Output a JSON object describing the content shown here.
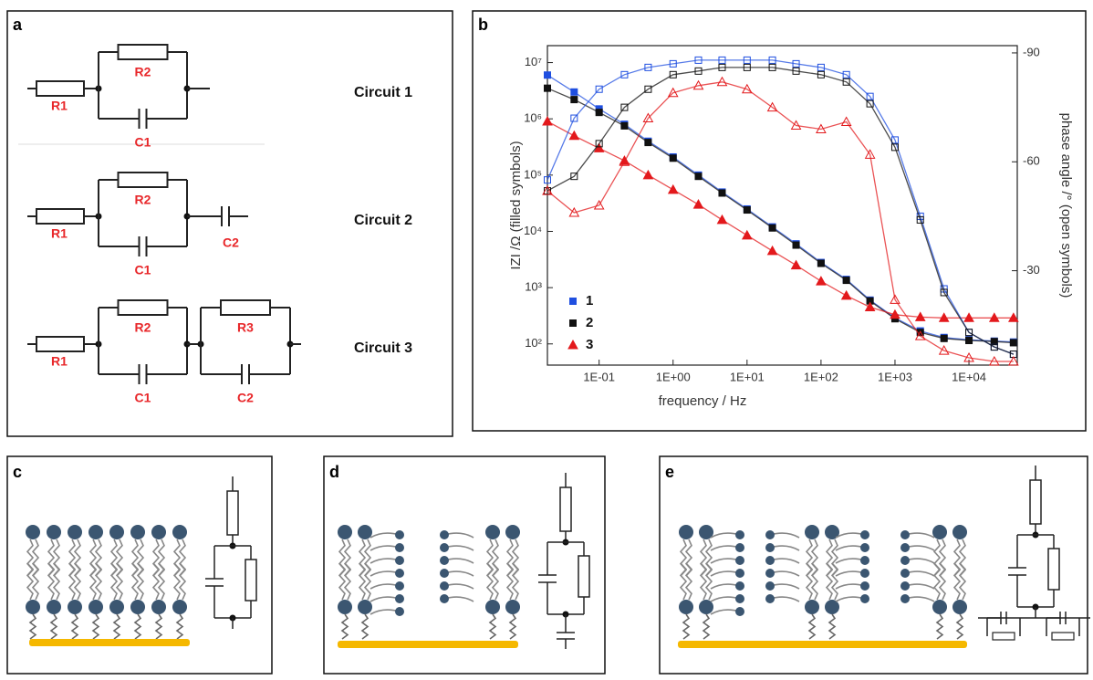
{
  "panels": {
    "a": {
      "label": "a",
      "circuits": [
        {
          "name": "Circuit 1",
          "elements": [
            "R1",
            "R2",
            "C1"
          ]
        },
        {
          "name": "Circuit 2",
          "elements": [
            "R1",
            "R2",
            "C1",
            "C2"
          ]
        },
        {
          "name": "Circuit 3",
          "elements": [
            "R1",
            "R2",
            "C1",
            "R3",
            "C2"
          ]
        }
      ]
    },
    "b": {
      "label": "b"
    },
    "c": {
      "label": "c"
    },
    "d": {
      "label": "d"
    },
    "e": {
      "label": "e"
    }
  },
  "chart_data": {
    "type": "scatter",
    "xlabel": "frequency / Hz",
    "ylabel": "IZI /Ω (filled symbols)",
    "y2label": "phase angle /° (open symbols)",
    "log_x": true,
    "log_y": true,
    "grid": false,
    "legend": "lower left",
    "x": [
      0.02,
      0.046,
      0.1,
      0.22,
      0.46,
      1,
      2.2,
      4.6,
      10,
      22,
      46,
      100,
      220,
      460,
      1000,
      2200,
      4600,
      10000,
      22000,
      40000
    ],
    "xlim": [
      0.02,
      45000
    ],
    "xticks": [
      {
        "value": 0.1,
        "label": "1E-01"
      },
      {
        "value": 1,
        "label": "1E+00"
      },
      {
        "value": 10,
        "label": "1E+01"
      },
      {
        "value": 100,
        "label": "1E+02"
      },
      {
        "value": 1000,
        "label": "1E+03"
      },
      {
        "value": 10000,
        "label": "1E+04"
      }
    ],
    "ylim": [
      42,
      20000000
    ],
    "yticks": [
      {
        "value": 100,
        "label": "10²"
      },
      {
        "value": 1000,
        "label": "10³"
      },
      {
        "value": 10000,
        "label": "10⁴"
      },
      {
        "value": 100000,
        "label": "10⁵"
      },
      {
        "value": 1000000,
        "label": "10⁶"
      },
      {
        "value": 10000000,
        "label": "10⁷"
      }
    ],
    "y2lim": [
      -4,
      -92
    ],
    "y2ticks": [
      -90,
      -60,
      -30
    ],
    "series": [
      {
        "name": "1",
        "color": "#1f4fe0",
        "marker": "square",
        "filled": true,
        "values": [
          6000000,
          3000000,
          1500000,
          800000,
          400000,
          210000,
          100000,
          50000,
          25000,
          12000,
          6000,
          2800,
          1400,
          600,
          290,
          170,
          130,
          118,
          112,
          108
        ]
      },
      {
        "name": "2",
        "color": "#111111",
        "marker": "square",
        "filled": true,
        "values": [
          3500000,
          2200000,
          1300000,
          750000,
          380000,
          200000,
          95000,
          48000,
          24000,
          11500,
          5700,
          2700,
          1350,
          580,
          280,
          160,
          125,
          115,
          110,
          105
        ]
      },
      {
        "name": "3",
        "color": "#e3191c",
        "marker": "triangle",
        "filled": true,
        "values": [
          900000,
          500000,
          300000,
          180000,
          100000,
          55000,
          30000,
          16000,
          8500,
          4500,
          2500,
          1300,
          720,
          450,
          330,
          300,
          290,
          290,
          290,
          290
        ]
      },
      {
        "color": "#1f4fe0",
        "marker": "square",
        "filled": false,
        "axis": "y2",
        "values": [
          -55,
          -72,
          -80,
          -84,
          -86,
          -87,
          -88,
          -88,
          -88,
          -88,
          -87,
          -86,
          -84,
          -78,
          -66,
          -45,
          -25,
          -13,
          -9,
          -7
        ]
      },
      {
        "color": "#111111",
        "marker": "square",
        "filled": false,
        "axis": "y2",
        "values": [
          -52,
          -56,
          -65,
          -75,
          -80,
          -84,
          -85,
          -86,
          -86,
          -86,
          -85,
          -84,
          -82,
          -76,
          -64,
          -44,
          -24,
          -13,
          -9,
          -7
        ]
      },
      {
        "color": "#e3191c",
        "marker": "triangle",
        "filled": false,
        "axis": "y2",
        "values": [
          -52,
          -46,
          -48,
          -60,
          -72,
          -79,
          -81,
          -82,
          -80,
          -75,
          -70,
          -69,
          -71,
          -62,
          -22,
          -12,
          -8,
          -6,
          -5,
          -5
        ]
      }
    ]
  }
}
